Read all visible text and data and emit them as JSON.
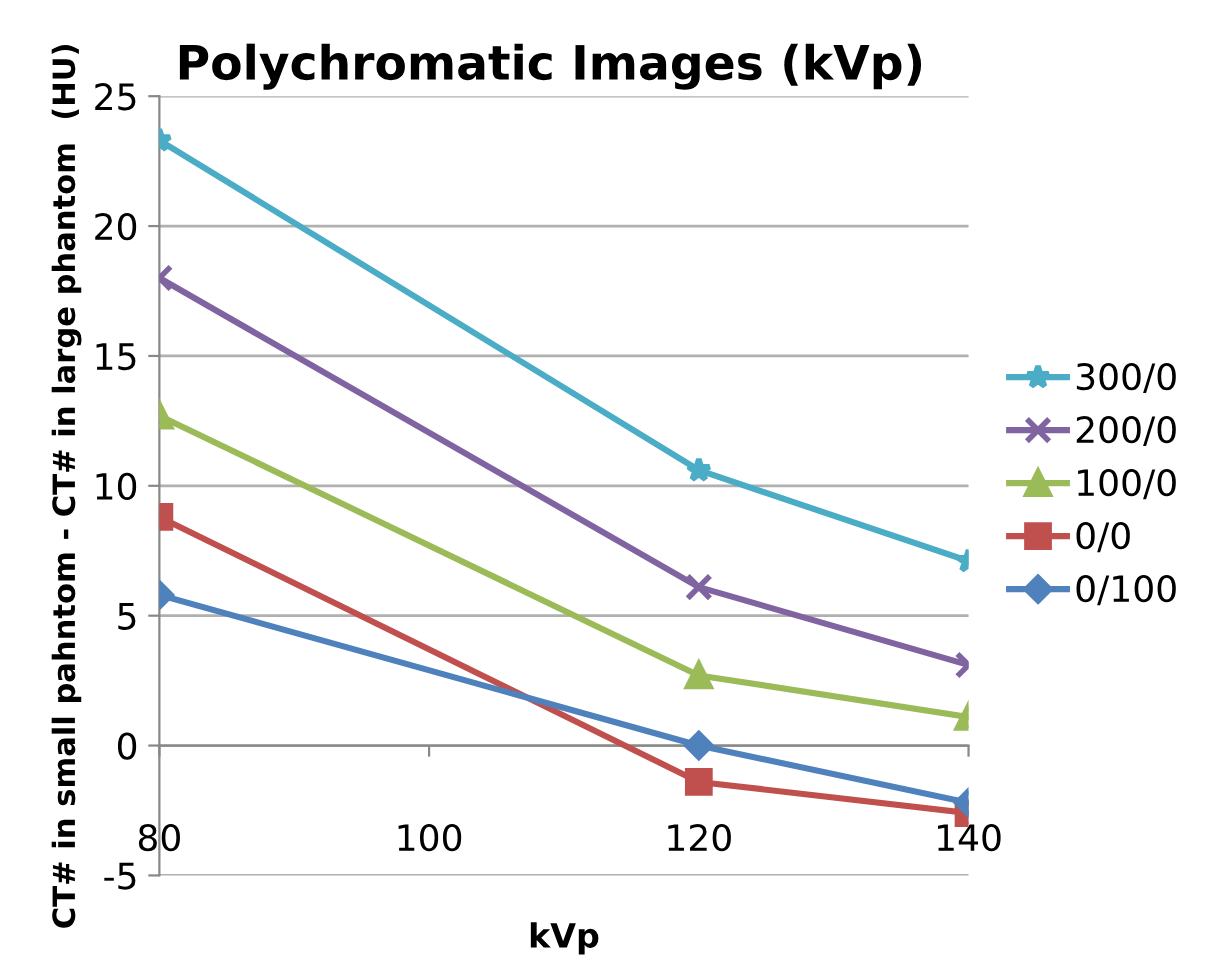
{
  "chart_data": {
    "type": "line",
    "title": "Polychromatic Images (kVp)",
    "xlabel": "kVp",
    "ylabel": "CT# in small pahntom - CT# in large phantom  (HU)",
    "x": [
      80,
      120,
      140
    ],
    "xlim": [
      80,
      140
    ],
    "xticks": [
      80,
      100,
      120,
      140
    ],
    "ylim": [
      -5,
      25
    ],
    "yticks": [
      -5,
      0,
      5,
      10,
      15,
      20,
      25
    ],
    "grid": "y",
    "legend": "right",
    "series": [
      {
        "name": "300/0",
        "color": "#4bacc6",
        "marker": "star",
        "values": [
          23.3,
          10.6,
          7.1
        ]
      },
      {
        "name": "200/0",
        "color": "#8064a2",
        "marker": "cross",
        "values": [
          18.0,
          6.1,
          3.1
        ]
      },
      {
        "name": "100/0",
        "color": "#9bbb59",
        "marker": "triangle",
        "values": [
          12.7,
          2.7,
          1.1
        ]
      },
      {
        "name": "0/0",
        "color": "#c0504d",
        "marker": "square",
        "values": [
          8.8,
          -1.4,
          -2.6
        ]
      },
      {
        "name": "0/100",
        "color": "#4f81bd",
        "marker": "diamond",
        "values": [
          5.8,
          0.0,
          -2.2
        ]
      }
    ]
  }
}
